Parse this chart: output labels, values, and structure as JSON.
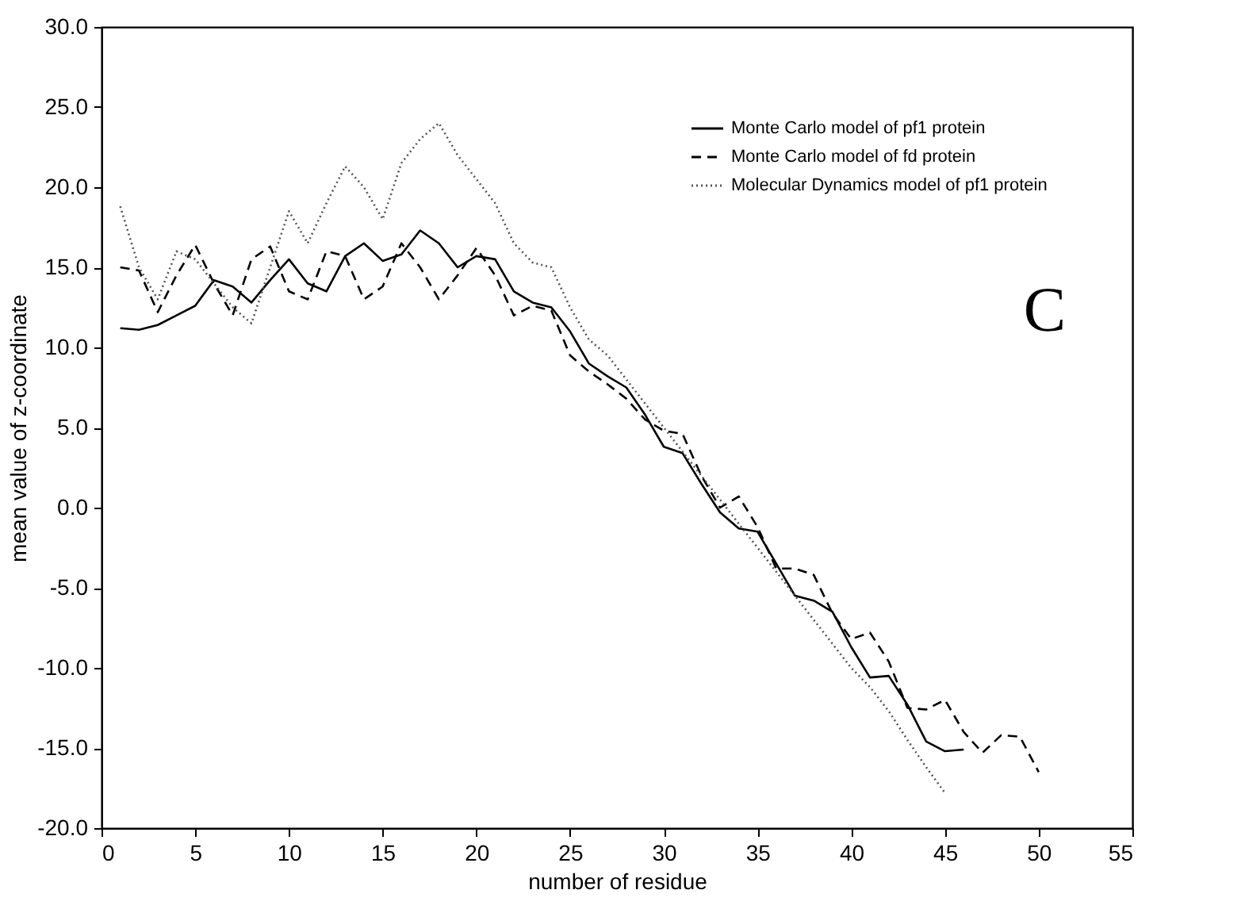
{
  "chart_data": {
    "type": "line",
    "xlabel": "number of residue",
    "ylabel": "mean value of z-coordinate",
    "x": [
      1,
      2,
      3,
      4,
      5,
      6,
      7,
      8,
      9,
      10,
      11,
      12,
      13,
      14,
      15,
      16,
      17,
      18,
      19,
      20,
      21,
      22,
      23,
      24,
      25,
      26,
      27,
      28,
      29,
      30,
      31,
      32,
      33,
      34,
      35,
      36,
      37,
      38,
      39,
      40,
      41,
      42,
      43,
      44,
      45,
      46,
      47,
      48,
      49,
      50
    ],
    "series": [
      {
        "name": "Monte Carlo model of pf1 protein",
        "color": "#000000",
        "line_style": "solid",
        "values": [
          11.2,
          11.1,
          11.4,
          12.0,
          12.6,
          14.2,
          13.8,
          12.8,
          14.2,
          15.5,
          14.0,
          13.5,
          15.7,
          16.5,
          15.4,
          15.8,
          17.3,
          16.5,
          15.0,
          15.7,
          15.5,
          13.5,
          12.8,
          12.5,
          11.0,
          9.0,
          8.2,
          7.5,
          5.8,
          3.8,
          3.4,
          1.5,
          -0.3,
          -1.3,
          -1.5,
          -3.5,
          -5.5,
          -5.8,
          -6.5,
          -8.7,
          -10.6,
          -10.5,
          -12.3,
          -14.6,
          -15.2,
          -15.1,
          null,
          null,
          null,
          null
        ]
      },
      {
        "name": "Monte Carlo model of fd protein",
        "color": "#000000",
        "line_style": "dashed",
        "values": [
          15.0,
          14.8,
          12.2,
          14.5,
          16.4,
          14.0,
          12.0,
          15.5,
          16.3,
          13.5,
          13.0,
          16.0,
          15.7,
          13.0,
          13.8,
          16.5,
          15.0,
          13.0,
          14.5,
          16.2,
          14.5,
          12.0,
          12.6,
          12.3,
          9.5,
          8.5,
          7.7,
          6.8,
          5.5,
          4.8,
          4.6,
          2.0,
          0.0,
          0.7,
          -1.2,
          -3.8,
          -3.8,
          -4.2,
          -6.6,
          -8.2,
          -7.8,
          -9.6,
          -12.5,
          -12.6,
          -12.0,
          -14.0,
          -15.3,
          -14.2,
          -14.3,
          -16.5
        ]
      },
      {
        "name": "Molecular Dynamics model of pf1 protein",
        "color": "#555555",
        "line_style": "dotted",
        "values": [
          18.8,
          15.0,
          13.0,
          16.0,
          15.5,
          14.0,
          12.5,
          11.5,
          15.0,
          18.5,
          16.5,
          19.0,
          21.3,
          20.0,
          18.0,
          21.5,
          23.0,
          24.0,
          22.0,
          20.5,
          19.0,
          16.5,
          15.3,
          15.0,
          12.5,
          10.5,
          9.5,
          8.0,
          6.5,
          5.0,
          3.5,
          2.0,
          0.5,
          -1.0,
          -2.5,
          -4.0,
          -5.5,
          -7.0,
          -8.5,
          -10.0,
          -11.2,
          -12.7,
          -14.5,
          -16.2,
          -17.8,
          null,
          null,
          null,
          null,
          null
        ]
      }
    ],
    "xlim": [
      0,
      55
    ],
    "xticks": [
      0,
      5,
      10,
      15,
      20,
      25,
      30,
      35,
      40,
      45,
      50,
      55
    ],
    "ylim": [
      -20,
      30
    ],
    "yticks": [
      {
        "value": -20,
        "label": "-20.0"
      },
      {
        "value": -15,
        "label": "-15.0"
      },
      {
        "value": -10,
        "label": "-10.0"
      },
      {
        "value": -5,
        "label": "-5.0"
      },
      {
        "value": 0,
        "label": "0.0"
      },
      {
        "value": 5,
        "label": "5.0"
      },
      {
        "value": 10,
        "label": "10.0"
      },
      {
        "value": 15,
        "label": "15.0"
      },
      {
        "value": 20,
        "label": "20.0"
      },
      {
        "value": 25,
        "label": "25.0"
      },
      {
        "value": 30,
        "label": "30.0"
      }
    ],
    "legend": "top right",
    "grid": false,
    "marker": "none",
    "annotations": [
      "C"
    ]
  }
}
